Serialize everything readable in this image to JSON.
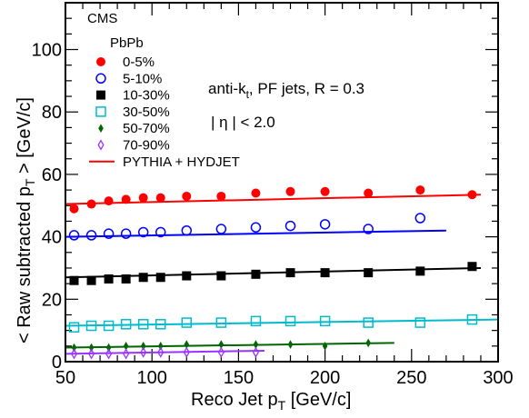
{
  "chart_data": {
    "type": "scatter",
    "experiment": "CMS",
    "system": "PbPb",
    "annotation_prefix": "anti-k",
    "annotation_sub": "t",
    "annotation_suffix": ", PF jets, R = 0.3",
    "eta_cut": "| η | < 2.0",
    "xlabel_main": "Reco Jet p",
    "xlabel_sub": "T",
    "xlabel_unit": " [GeV/c]",
    "ylabel_pre": "< Raw subtracted p",
    "ylabel_sub": "T",
    "ylabel_post": " > [GeV/c]",
    "xlim": [
      50,
      300
    ],
    "ylim": [
      0,
      115
    ],
    "xticks": [
      50,
      100,
      150,
      200,
      250,
      300
    ],
    "yticks": [
      0,
      20,
      40,
      60,
      80,
      100
    ],
    "legend_placement": "top-left",
    "legend_mc_label": "PYTHIA + HYDJET",
    "series": [
      {
        "name": "0-5%",
        "marker": "circle-filled",
        "color": "#ff0000",
        "x": [
          55,
          65,
          75,
          85,
          95,
          105,
          120,
          140,
          160,
          180,
          200,
          225,
          255,
          285
        ],
        "y": [
          49,
          50.5,
          51.5,
          52,
          52.5,
          52.5,
          53,
          53,
          54,
          54.5,
          54.5,
          54,
          55,
          53.5
        ],
        "mc_x": [
          50,
          290
        ],
        "mc_y": [
          50.5,
          53.5
        ]
      },
      {
        "name": "5-10%",
        "marker": "circle-open",
        "color": "#0000ff",
        "x": [
          55,
          65,
          75,
          85,
          95,
          105,
          120,
          140,
          160,
          180,
          200,
          225,
          255
        ],
        "y": [
          40.5,
          40.5,
          41,
          41,
          41.5,
          41.5,
          42,
          42.5,
          43,
          43.5,
          44,
          42.5,
          46
        ],
        "mc_x": [
          50,
          270
        ],
        "mc_y": [
          40,
          42
        ]
      },
      {
        "name": "10-30%",
        "marker": "square-filled",
        "color": "#000000",
        "x": [
          55,
          65,
          75,
          85,
          95,
          105,
          120,
          140,
          160,
          180,
          200,
          225,
          255,
          285
        ],
        "y": [
          26,
          26,
          26.5,
          26.5,
          27,
          27,
          27.5,
          27.5,
          28,
          28.5,
          28.5,
          28.5,
          29,
          30.5
        ],
        "mc_x": [
          50,
          290
        ],
        "mc_y": [
          27,
          30
        ]
      },
      {
        "name": "30-50%",
        "marker": "square-open",
        "color": "#00bbcc",
        "x": [
          55,
          65,
          75,
          85,
          95,
          105,
          120,
          140,
          160,
          180,
          200,
          225,
          255,
          285
        ],
        "y": [
          11,
          11.5,
          11.5,
          12,
          12,
          12,
          12.5,
          12.5,
          13,
          13,
          13,
          12.5,
          12.5,
          13.5
        ],
        "mc_x": [
          50,
          300
        ],
        "mc_y": [
          11.5,
          13.5
        ]
      },
      {
        "name": "50-70%",
        "marker": "diamond-filled",
        "color": "#006600",
        "x": [
          55,
          65,
          75,
          85,
          95,
          105,
          120,
          140,
          160,
          180,
          200,
          225
        ],
        "y": [
          4.5,
          4.5,
          4.5,
          5,
          5,
          5,
          5.5,
          5.5,
          5.5,
          5.5,
          5,
          6
        ],
        "mc_x": [
          50,
          240
        ],
        "mc_y": [
          4.5,
          6
        ]
      },
      {
        "name": "70-90%",
        "marker": "diamond-open",
        "color": "#9933ff",
        "x": [
          55,
          65,
          75,
          85,
          95,
          105,
          120,
          140,
          160
        ],
        "y": [
          2.5,
          2.5,
          2.5,
          2.5,
          3,
          3,
          3,
          3,
          3
        ],
        "mc_x": [
          50,
          165
        ],
        "mc_y": [
          2.5,
          3.5
        ]
      }
    ]
  }
}
